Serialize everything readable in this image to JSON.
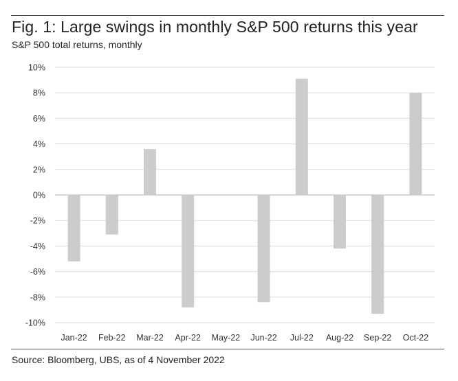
{
  "figure": {
    "title": "Fig. 1: Large swings in monthly S&P 500 returns this year",
    "subtitle": "S&P 500 total returns, monthly",
    "source": "Source: Bloomberg, UBS, as of 4 November 2022"
  },
  "chart_data": {
    "type": "bar",
    "title": "Fig. 1: Large swings in monthly S&P 500 returns this year",
    "subtitle": "S&P 500 total returns, monthly",
    "categories": [
      "Jan-22",
      "Feb-22",
      "Mar-22",
      "Apr-22",
      "May-22",
      "Jun-22",
      "Jul-22",
      "Aug-22",
      "Sep-22",
      "Oct-22"
    ],
    "values": [
      -5.2,
      -3.1,
      3.6,
      -8.8,
      0.0,
      -8.4,
      9.1,
      -4.2,
      -9.3,
      8.0
    ],
    "ylim": [
      -10,
      10
    ],
    "yticks": [
      10,
      8,
      6,
      4,
      2,
      0,
      -2,
      -4,
      -6,
      -8,
      -10
    ],
    "ytick_labels": [
      "10%",
      "8%",
      "6%",
      "4%",
      "2%",
      "0%",
      "-2%",
      "-4%",
      "-6%",
      "-8%",
      "-10%"
    ],
    "xlabel": "",
    "ylabel": "",
    "grid": true,
    "legend": "none",
    "colors": {
      "bar": "#cccccc",
      "grid": "#d9d9d9",
      "zero_line": "#bfbfbf",
      "tick_text": "#333333"
    }
  }
}
